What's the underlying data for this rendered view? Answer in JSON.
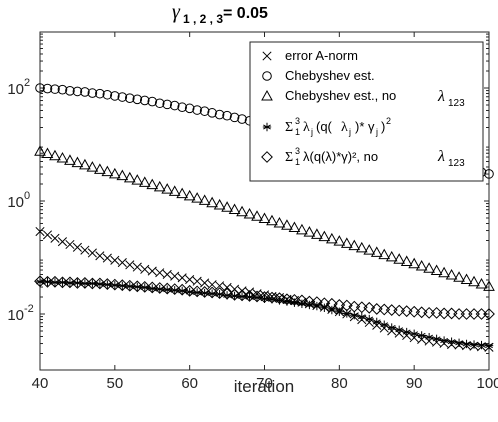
{
  "chart_data": {
    "type": "scatter",
    "title_symbol": "γ",
    "title_subscript": "1 , 2 , 3",
    "title_value": "= 0.05",
    "xlabel": "iteration",
    "ylabel": "",
    "xlim": [
      40,
      100
    ],
    "ylim_log10": [
      -3,
      1.5
    ],
    "yscale": "log",
    "grid": false,
    "legend_position": "top-right",
    "x_ticks": [
      "40",
      "50",
      "60",
      "70",
      "80",
      "90",
      "100"
    ],
    "y_ticks": [
      {
        "base": "10",
        "exp": "2"
      },
      {
        "base": "10",
        "exp": "0"
      },
      {
        "base": "10",
        "exp": "-2"
      }
    ],
    "series": [
      {
        "marker": "x",
        "legend": {
          "text": "error A-norm"
        },
        "note": "log10 values, iterations 40..100",
        "log10_values": [
          -0.54,
          -0.6,
          -0.66,
          -0.72,
          -0.77,
          -0.82,
          -0.87,
          -0.92,
          -0.97,
          -1.01,
          -1.05,
          -1.09,
          -1.13,
          -1.17,
          -1.21,
          -1.24,
          -1.27,
          -1.3,
          -1.33,
          -1.36,
          -1.39,
          -1.42,
          -1.45,
          -1.48,
          -1.5,
          -1.53,
          -1.56,
          -1.59,
          -1.61,
          -1.64,
          -1.66,
          -1.69,
          -1.71,
          -1.74,
          -1.76,
          -1.79,
          -1.82,
          -1.85,
          -1.88,
          -1.92,
          -1.96,
          -2.0,
          -2.05,
          -2.1,
          -2.15,
          -2.2,
          -2.25,
          -2.3,
          -2.34,
          -2.38,
          -2.42,
          -2.45,
          -2.48,
          -2.5,
          -2.52,
          -2.54,
          -2.55,
          -2.56,
          -2.57,
          -2.58,
          -2.59
        ]
      },
      {
        "marker": "circle",
        "legend": {
          "text": "Chebyshev est."
        },
        "log10_values": [
          2.0,
          1.99,
          1.98,
          1.97,
          1.95,
          1.94,
          1.93,
          1.91,
          1.9,
          1.88,
          1.86,
          1.84,
          1.82,
          1.8,
          1.78,
          1.76,
          1.73,
          1.71,
          1.69,
          1.66,
          1.64,
          1.61,
          1.59,
          1.56,
          1.53,
          1.51,
          1.48,
          1.45,
          1.42,
          1.4,
          1.37,
          1.34,
          1.31,
          1.28,
          1.25,
          1.22,
          1.19,
          1.16,
          1.13,
          1.1,
          1.07,
          1.04,
          1.01,
          0.98,
          0.95,
          0.92,
          0.89,
          0.86,
          0.83,
          0.8,
          0.77,
          0.74,
          0.71,
          0.68,
          0.65,
          0.62,
          0.59,
          0.56,
          0.53,
          0.51,
          0.48
        ]
      },
      {
        "marker": "triangle",
        "legend": {
          "text": "Chebyshev est., no",
          "math": "λ",
          "math_sub": "123"
        },
        "log10_values": [
          0.88,
          0.84,
          0.8,
          0.76,
          0.72,
          0.68,
          0.64,
          0.6,
          0.56,
          0.52,
          0.48,
          0.45,
          0.41,
          0.37,
          0.33,
          0.29,
          0.25,
          0.21,
          0.17,
          0.13,
          0.09,
          0.05,
          0.01,
          -0.03,
          -0.07,
          -0.11,
          -0.15,
          -0.19,
          -0.23,
          -0.27,
          -0.31,
          -0.35,
          -0.39,
          -0.43,
          -0.47,
          -0.51,
          -0.55,
          -0.59,
          -0.63,
          -0.67,
          -0.71,
          -0.75,
          -0.79,
          -0.83,
          -0.87,
          -0.91,
          -0.95,
          -0.99,
          -1.03,
          -1.07,
          -1.11,
          -1.15,
          -1.19,
          -1.23,
          -1.27,
          -1.31,
          -1.35,
          -1.39,
          -1.43,
          -1.47,
          -1.51
        ]
      },
      {
        "marker": "asterisk",
        "legend": {
          "math": "Σ",
          "math_sub": "1",
          "math_sup": "3",
          "formula_a": "λ",
          "formula_a_sub": "j",
          "formula_b": "(q(",
          "formula_c": "λ",
          "formula_c_sub": "j",
          "formula_d": ")* γ",
          "formula_d_sub": "j",
          "formula_e": ")",
          "formula_e_sup": "2"
        },
        "log10_values": [
          -1.43,
          -1.43,
          -1.44,
          -1.44,
          -1.45,
          -1.45,
          -1.46,
          -1.46,
          -1.47,
          -1.48,
          -1.49,
          -1.5,
          -1.51,
          -1.52,
          -1.53,
          -1.55,
          -1.56,
          -1.57,
          -1.58,
          -1.59,
          -1.61,
          -1.62,
          -1.63,
          -1.64,
          -1.65,
          -1.67,
          -1.68,
          -1.69,
          -1.7,
          -1.71,
          -1.73,
          -1.74,
          -1.76,
          -1.78,
          -1.8,
          -1.82,
          -1.84,
          -1.86,
          -1.89,
          -1.93,
          -1.96,
          -1.99,
          -2.02,
          -2.05,
          -2.09,
          -2.14,
          -2.19,
          -2.24,
          -2.28,
          -2.32,
          -2.35,
          -2.38,
          -2.41,
          -2.44,
          -2.47,
          -2.49,
          -2.51,
          -2.53,
          -2.54,
          -2.55,
          -2.56
        ]
      },
      {
        "marker": "diamond",
        "legend": {
          "math": "Σ",
          "math_sub": "1",
          "math_sup": "3",
          "formula": "λ(q(λ)*γ)², no",
          "math2": "λ",
          "math2_sub": "123"
        },
        "log10_values": [
          -1.42,
          -1.43,
          -1.43,
          -1.44,
          -1.44,
          -1.45,
          -1.45,
          -1.46,
          -1.46,
          -1.47,
          -1.48,
          -1.49,
          -1.5,
          -1.51,
          -1.52,
          -1.53,
          -1.54,
          -1.55,
          -1.56,
          -1.57,
          -1.59,
          -1.6,
          -1.61,
          -1.62,
          -1.63,
          -1.64,
          -1.66,
          -1.67,
          -1.68,
          -1.69,
          -1.7,
          -1.71,
          -1.72,
          -1.74,
          -1.75,
          -1.76,
          -1.78,
          -1.79,
          -1.81,
          -1.82,
          -1.84,
          -1.85,
          -1.87,
          -1.88,
          -1.89,
          -1.91,
          -1.92,
          -1.93,
          -1.94,
          -1.95,
          -1.96,
          -1.97,
          -1.98,
          -1.98,
          -1.99,
          -1.99,
          -2.0,
          -2.0,
          -2.0,
          -2.0,
          -2.0
        ]
      }
    ]
  }
}
